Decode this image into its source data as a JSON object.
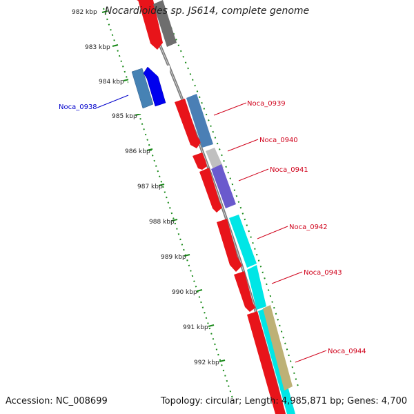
{
  "title": "Nocardioides sp. JS614, complete genome",
  "footer": {
    "accession": "Accession: NC_008699",
    "topology": "Topology: circular; Length: 4,985,871 bp; Genes: 4,700"
  },
  "kbp_labels": [
    "982 kbp",
    "983 kbp",
    "984 kbp",
    "985 kbp",
    "986 kbp",
    "987 kbp",
    "988 kbp",
    "989 kbp",
    "990 kbp",
    "991 kbp",
    "992 kbp"
  ],
  "colors": {
    "forward": "#e8141a",
    "noca_0938": "#0000cc",
    "callout": "#d0021b",
    "ruler": "#1a8a1a"
  },
  "gene_labels": [
    {
      "id": "noca_0938",
      "text": "Noca_0938",
      "color": "#0000cc"
    },
    {
      "id": "noca_0939",
      "text": "Noca_0939",
      "color": "#d0021b"
    },
    {
      "id": "noca_0940",
      "text": "Noca_0940",
      "color": "#d0021b"
    },
    {
      "id": "noca_0941",
      "text": "Noca_0941",
      "color": "#d0021b"
    },
    {
      "id": "noca_0942",
      "text": "Noca_0942",
      "color": "#d0021b"
    },
    {
      "id": "noca_0943",
      "text": "Noca_0943",
      "color": "#d0021b"
    },
    {
      "id": "noca_0944",
      "text": "Noca_0944",
      "color": "#d0021b"
    }
  ]
}
